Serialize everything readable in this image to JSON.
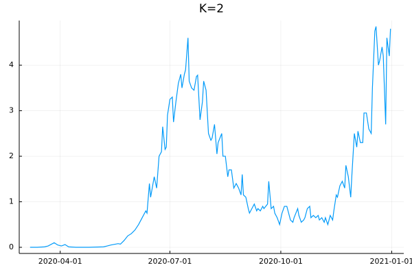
{
  "chart_data": {
    "type": "line",
    "title": "K=2",
    "x": [
      "2020-03-07",
      "2020-03-13",
      "2020-03-19",
      "2020-03-22",
      "2020-03-27",
      "2020-03-30",
      "2020-04-02",
      "2020-04-05",
      "2020-04-08",
      "2020-04-14",
      "2020-04-25",
      "2020-05-07",
      "2020-05-10",
      "2020-05-13",
      "2020-05-19",
      "2020-05-21",
      "2020-05-24",
      "2020-05-27",
      "2020-05-30",
      "2020-06-02",
      "2020-06-05",
      "2020-06-08",
      "2020-06-11",
      "2020-06-12",
      "2020-06-14",
      "2020-06-15",
      "2020-06-18",
      "2020-06-20",
      "2020-06-22",
      "2020-06-24",
      "2020-06-25",
      "2020-06-27",
      "2020-06-28",
      "2020-06-29",
      "2020-07-01",
      "2020-07-03",
      "2020-07-04",
      "2020-07-06",
      "2020-07-08",
      "2020-07-10",
      "2020-07-11",
      "2020-07-13",
      "2020-07-14",
      "2020-07-16",
      "2020-07-17",
      "2020-07-19",
      "2020-07-21",
      "2020-07-23",
      "2020-07-24",
      "2020-07-26",
      "2020-07-28",
      "2020-07-29",
      "2020-07-31",
      "2020-08-02",
      "2020-08-04",
      "2020-08-05",
      "2020-08-07",
      "2020-08-09",
      "2020-08-10",
      "2020-08-13",
      "2020-08-14",
      "2020-08-16",
      "2020-08-18",
      "2020-08-19",
      "2020-08-21",
      "2020-08-23",
      "2020-08-25",
      "2020-08-27",
      "2020-08-29",
      "2020-08-30",
      "2020-08-31",
      "2020-09-02",
      "2020-09-04",
      "2020-09-05",
      "2020-09-07",
      "2020-09-09",
      "2020-09-11",
      "2020-09-12",
      "2020-09-14",
      "2020-09-16",
      "2020-09-17",
      "2020-09-20",
      "2020-09-21",
      "2020-09-23",
      "2020-09-25",
      "2020-09-26",
      "2020-09-28",
      "2020-09-30",
      "2020-10-02",
      "2020-10-04",
      "2020-10-06",
      "2020-10-07",
      "2020-10-09",
      "2020-10-11",
      "2020-10-12",
      "2020-10-15",
      "2020-10-16",
      "2020-10-18",
      "2020-10-20",
      "2020-10-21",
      "2020-10-23",
      "2020-10-25",
      "2020-10-26",
      "2020-10-28",
      "2020-10-30",
      "2020-11-01",
      "2020-11-02",
      "2020-11-04",
      "2020-11-06",
      "2020-11-07",
      "2020-11-09",
      "2020-11-11",
      "2020-11-13",
      "2020-11-14",
      "2020-11-16",
      "2020-11-17",
      "2020-11-19",
      "2020-11-21",
      "2020-11-23",
      "2020-11-24",
      "2020-11-26",
      "2020-11-28",
      "2020-11-29",
      "2020-12-01",
      "2020-12-03",
      "2020-12-04",
      "2020-12-06",
      "2020-12-08",
      "2020-12-09",
      "2020-12-11",
      "2020-12-13",
      "2020-12-15",
      "2020-12-16",
      "2020-12-18",
      "2020-12-19",
      "2020-12-21",
      "2020-12-22",
      "2020-12-24",
      "2020-12-25",
      "2020-12-27",
      "2020-12-28",
      "2020-12-30",
      "2020-12-31"
    ],
    "series": [
      {
        "color": "#009af9",
        "values": [
          0,
          0,
          0.01,
          0.03,
          0.1,
          0.05,
          0.03,
          0.06,
          0.01,
          0,
          0,
          0.01,
          0.03,
          0.05,
          0.08,
          0.07,
          0.15,
          0.25,
          0.3,
          0.38,
          0.5,
          0.65,
          0.8,
          0.75,
          1.4,
          1.1,
          1.55,
          1.3,
          2.0,
          2.1,
          2.65,
          2.15,
          2.2,
          2.9,
          3.25,
          3.3,
          2.75,
          3.2,
          3.6,
          3.8,
          3.5,
          3.8,
          3.9,
          4.6,
          3.65,
          3.5,
          3.45,
          3.75,
          3.78,
          2.8,
          3.2,
          3.65,
          3.45,
          2.5,
          2.35,
          2.4,
          2.7,
          2.05,
          2.3,
          2.5,
          2.0,
          2.0,
          1.55,
          1.7,
          1.7,
          1.3,
          1.4,
          1.3,
          1.15,
          1.6,
          1.15,
          1.1,
          0.85,
          0.75,
          0.85,
          0.95,
          0.8,
          0.85,
          0.8,
          0.9,
          0.85,
          0.95,
          1.45,
          0.85,
          0.9,
          0.75,
          0.65,
          0.5,
          0.75,
          0.9,
          0.9,
          0.8,
          0.6,
          0.55,
          0.65,
          0.85,
          0.7,
          0.55,
          0.6,
          0.65,
          0.85,
          0.9,
          0.65,
          0.7,
          0.65,
          0.7,
          0.6,
          0.65,
          0.55,
          0.65,
          0.5,
          0.7,
          0.6,
          0.8,
          1.15,
          1.1,
          1.35,
          1.45,
          1.3,
          1.8,
          1.55,
          1.1,
          1.6,
          2.5,
          2.2,
          2.55,
          2.3,
          2.3,
          2.95,
          2.95,
          2.6,
          2.5,
          3.5,
          4.75,
          4.85,
          4.0,
          4.1,
          4.4,
          4.2,
          2.7,
          4.6,
          4.2,
          4.8
        ]
      }
    ],
    "xlim": [
      "2020-02-27",
      "2021-01-11"
    ],
    "xticks": [
      "2020-04-01",
      "2020-07-01",
      "2020-10-01",
      "2021-01-01"
    ],
    "ylim": [
      -0.135,
      4.98
    ],
    "yticks": [
      0,
      1,
      2,
      3,
      4
    ],
    "grid": true
  }
}
